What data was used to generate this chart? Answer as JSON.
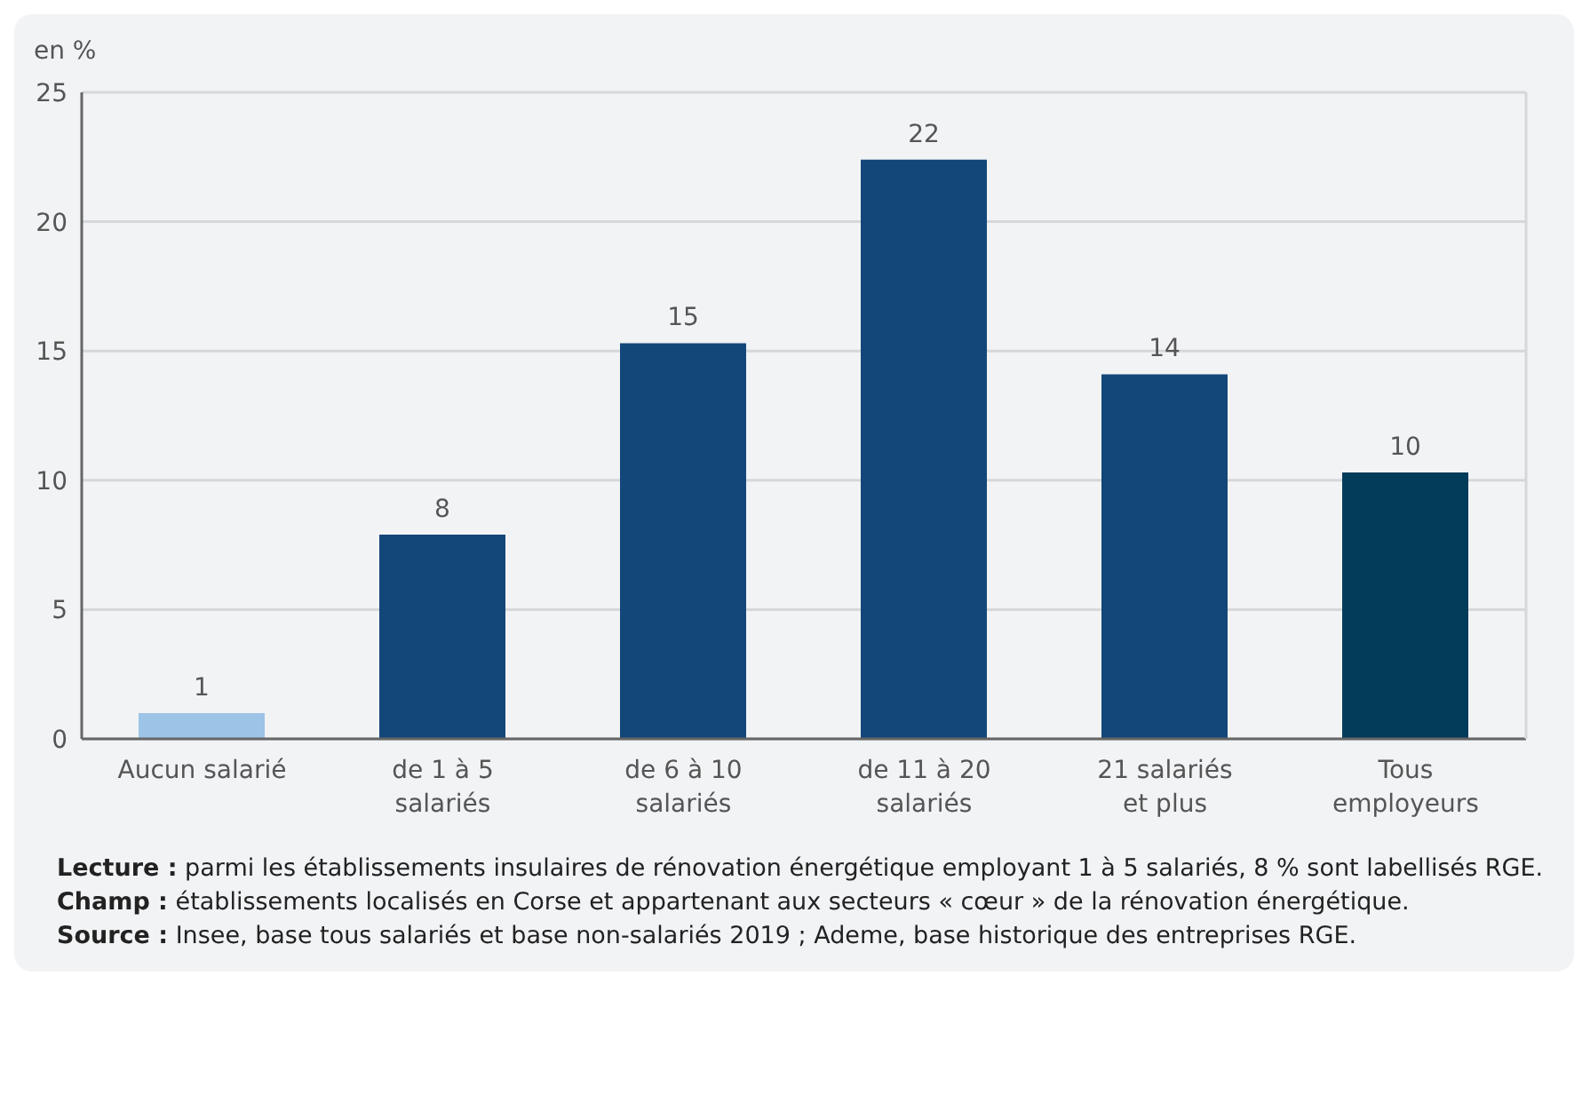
{
  "chart_data": {
    "type": "bar",
    "ylabel": "en %",
    "categories": [
      "Aucun salarié",
      "de 1 à 5\nsalariés",
      "de 6 à 10\nsalariés",
      "de 11 à 20\nsalariés",
      "21 salariés\net plus",
      "Tous\nemployeurs"
    ],
    "values": [
      1.0,
      7.9,
      15.3,
      22.4,
      14.1,
      10.3
    ],
    "value_labels": [
      "1",
      "8",
      "15",
      "22",
      "14",
      "10"
    ],
    "colors": [
      "#9dc3e6",
      "#134779",
      "#134779",
      "#134779",
      "#134779",
      "#033b5a"
    ],
    "ylim": [
      0,
      25
    ],
    "yticks": [
      0,
      5,
      10,
      15,
      20,
      25
    ],
    "grid": "y",
    "annotations": [
      "Lecture : parmi les établissements insulaires de rénovation énergétique employant 1 à 5 salariés, 8 % sont labellisés RGE.",
      "Champ : établissements localisés en Corse et appartenant aux secteurs « cœur » de la rénovation énergétique.",
      "Source : Insee, base tous salariés et base non-salariés 2019 ; Ademe, base historique des entreprises RGE."
    ]
  }
}
